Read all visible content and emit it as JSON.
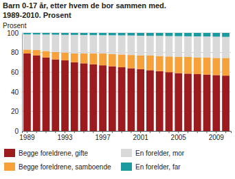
{
  "chart_data": {
    "type": "bar",
    "stacked": true,
    "grid": true,
    "title": "Barn 0-17 år, etter hvem de bor sammen med.",
    "subtitle": "1989-2010. Prosent",
    "y_label": "Prosent",
    "categories": [
      "1989",
      null,
      null,
      null,
      "1993",
      null,
      null,
      null,
      "1997",
      null,
      null,
      null,
      "2001",
      null,
      null,
      null,
      "2005",
      null,
      null,
      null,
      "2009",
      null
    ],
    "ylim": [
      0,
      100
    ],
    "yticks": [
      0,
      20,
      40,
      60,
      80,
      100
    ],
    "series": [
      {
        "name": "Begge foreldrene, gifte",
        "color": "#9b1b1e",
        "values": [
          79,
          77,
          75,
          73,
          72,
          70,
          69,
          68,
          67,
          66,
          65,
          64,
          63,
          62,
          61,
          60,
          59,
          58.5,
          58,
          57.5,
          57,
          56.5
        ]
      },
      {
        "name": "Begge foreldrene, samboende",
        "color": "#f7a13a",
        "values": [
          4,
          5.5,
          6.5,
          7.5,
          8,
          9,
          10,
          11,
          12,
          12.5,
          13,
          13.5,
          14,
          15,
          15.5,
          16,
          16.5,
          17,
          17,
          17.5,
          17.5,
          18
        ]
      },
      {
        "name": "En forelder, mor",
        "color": "#d9d9d9",
        "values": [
          15.5,
          15.9,
          16.8,
          17.7,
          18,
          19,
          18.9,
          18.8,
          18.7,
          19.1,
          19.5,
          19.9,
          20.2,
          20,
          20.5,
          20.8,
          21.2,
          21.1,
          21.5,
          21.4,
          21.7,
          21.5
        ]
      },
      {
        "name": "En forelder, far",
        "color": "#1a9ba0",
        "values": [
          1.5,
          1.6,
          1.7,
          1.8,
          2,
          2,
          2.1,
          2.2,
          2.3,
          2.4,
          2.5,
          2.6,
          2.8,
          3,
          3,
          3.2,
          3.3,
          3.4,
          3.5,
          3.6,
          3.8,
          4
        ]
      }
    ]
  }
}
